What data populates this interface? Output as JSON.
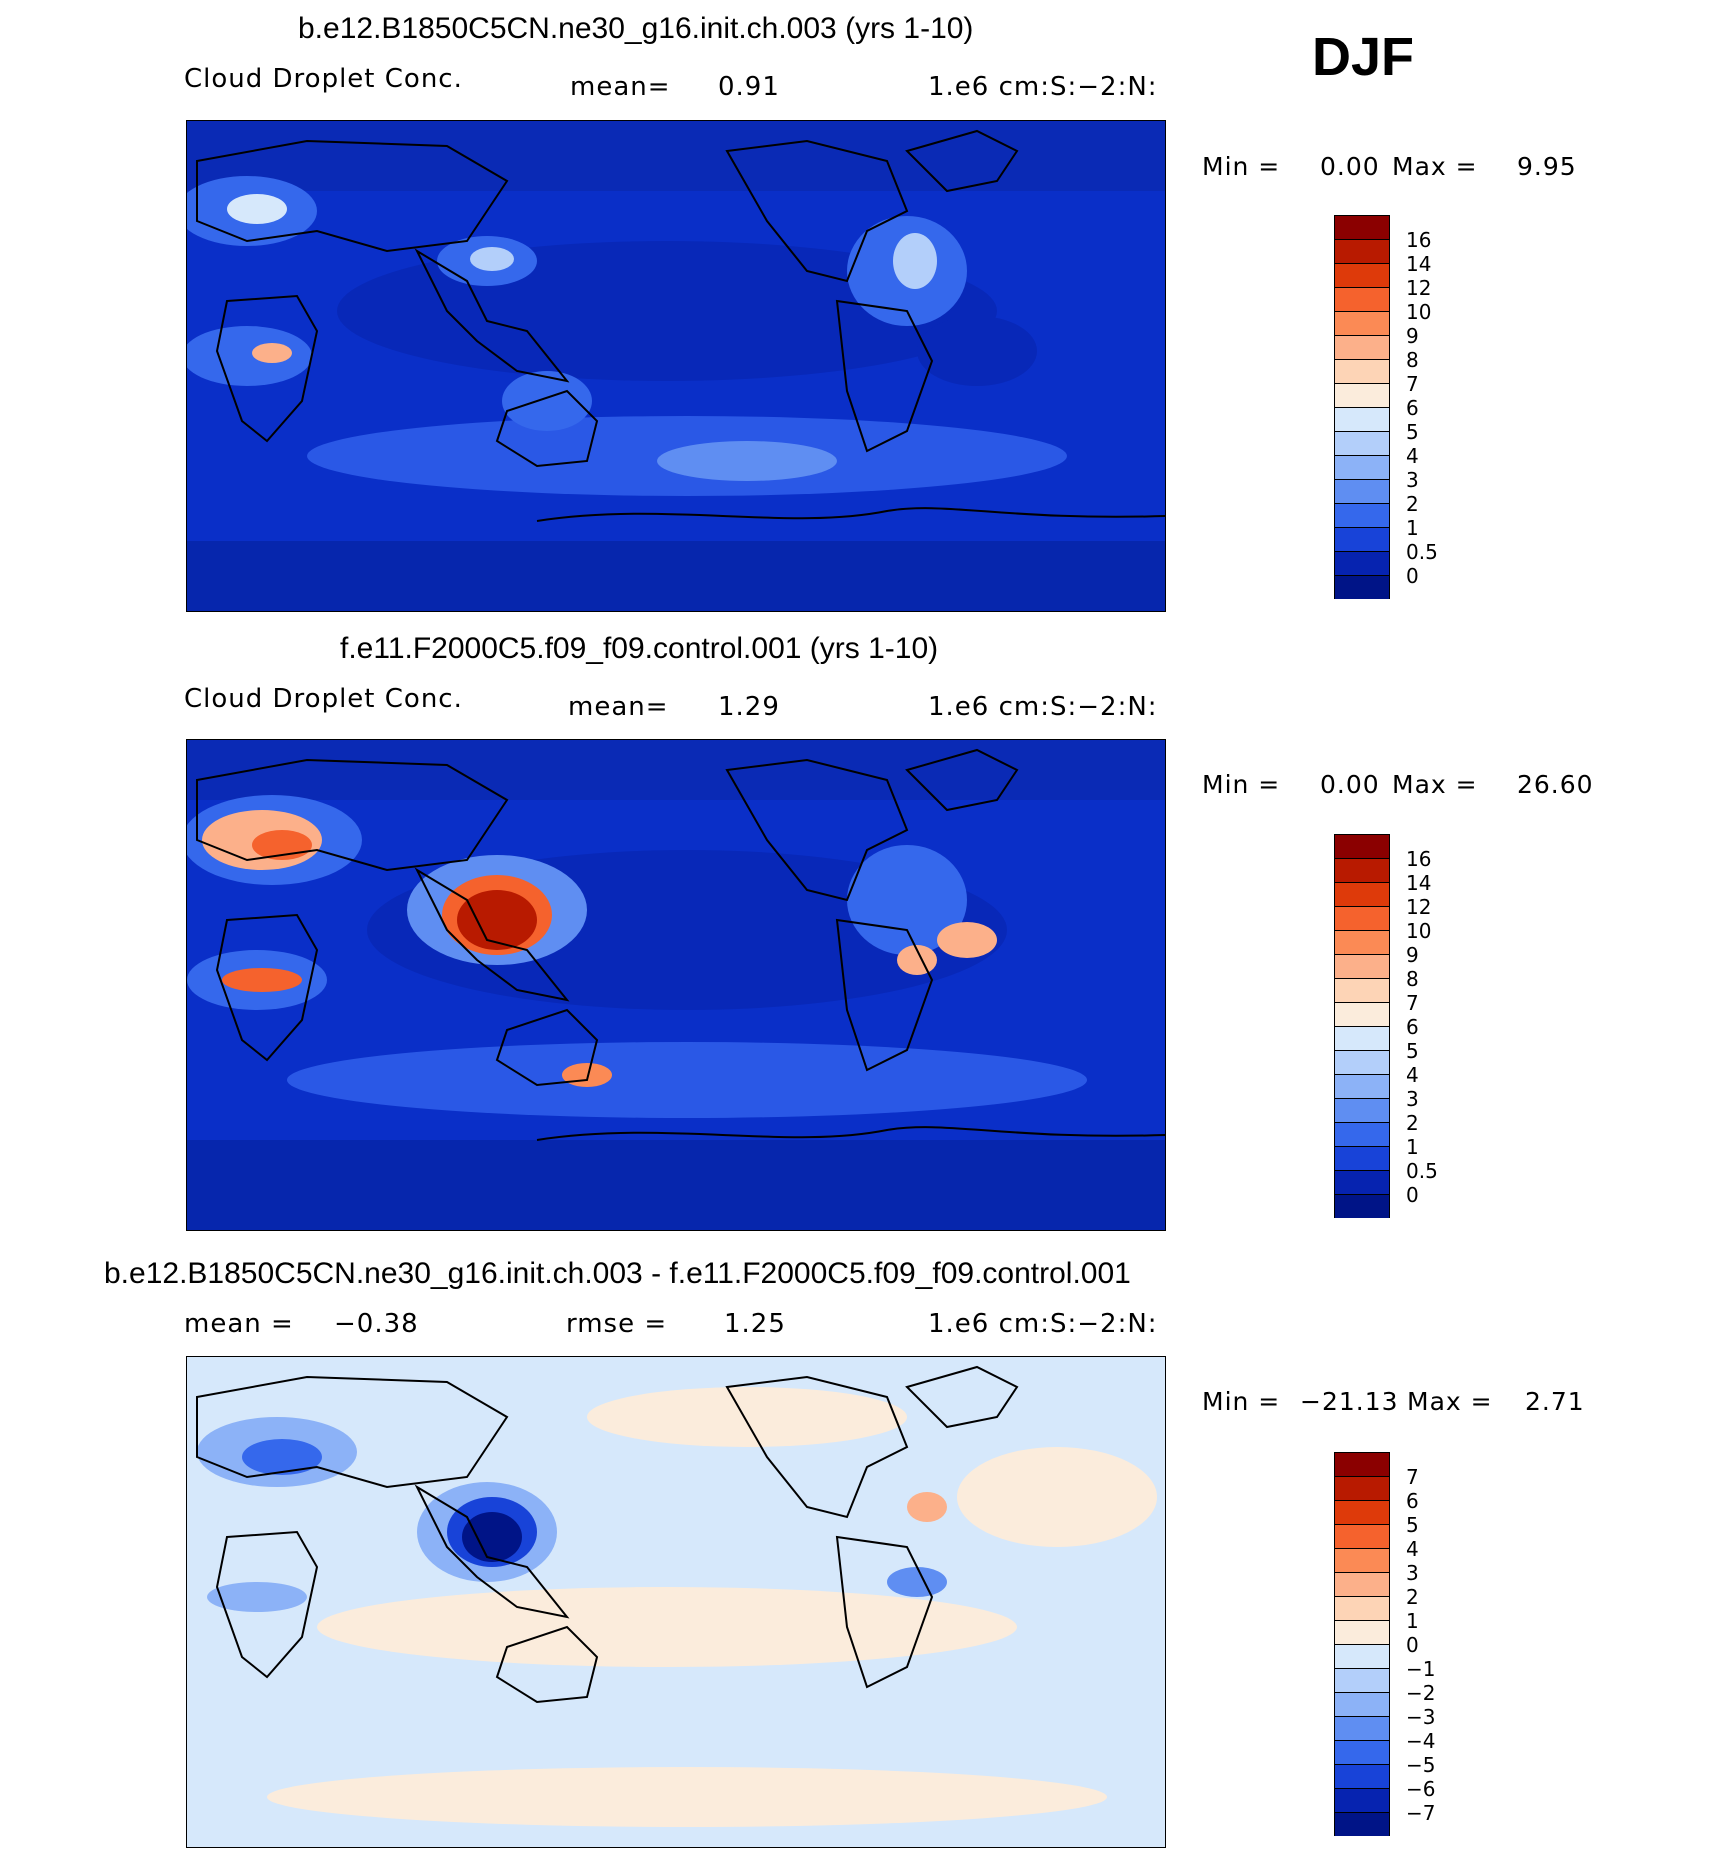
{
  "season": "DJF",
  "panels": [
    {
      "title": "b.e12.B1850C5CN.ne30_g16.init.ch.003 (yrs 1-10)",
      "left_label": "Cloud Droplet Conc.",
      "stat_label": "mean=",
      "stat_value": "0.91",
      "units": "1.e6 cm:S:−2:N:",
      "min_label": "Min =",
      "min_value": "0.00",
      "max_label": "Max =",
      "max_value": "9.95",
      "colorbar": {
        "levels": [
          "16",
          "14",
          "12",
          "10",
          "9",
          "8",
          "7",
          "6",
          "5",
          "4",
          "3",
          "2",
          "1",
          "0.5",
          "0"
        ],
        "colors": [
          "#8b0000",
          "#b81a00",
          "#de3a0a",
          "#f5622d",
          "#fb8a55",
          "#fcb08a",
          "#fdd4b6",
          "#fbecdc",
          "#d6e8fb",
          "#b3cffa",
          "#8cb2f7",
          "#5f8ef2",
          "#3568ec",
          "#1843d8",
          "#0623b0",
          "#001487"
        ]
      }
    },
    {
      "title": "f.e11.F2000C5.f09_f09.control.001 (yrs 1-10)",
      "left_label": "Cloud Droplet Conc.",
      "stat_label": "mean=",
      "stat_value": "1.29",
      "units": "1.e6 cm:S:−2:N:",
      "min_label": "Min =",
      "min_value": "0.00",
      "max_label": "Max =",
      "max_value": "26.60",
      "colorbar": {
        "levels": [
          "16",
          "14",
          "12",
          "10",
          "9",
          "8",
          "7",
          "6",
          "5",
          "4",
          "3",
          "2",
          "1",
          "0.5",
          "0"
        ],
        "colors": [
          "#8b0000",
          "#b81a00",
          "#de3a0a",
          "#f5622d",
          "#fb8a55",
          "#fcb08a",
          "#fdd4b6",
          "#fbecdc",
          "#d6e8fb",
          "#b3cffa",
          "#8cb2f7",
          "#5f8ef2",
          "#3568ec",
          "#1843d8",
          "#0623b0",
          "#001487"
        ]
      }
    },
    {
      "title": "b.e12.B1850C5CN.ne30_g16.init.ch.003 - f.e11.F2000C5.f09_f09.control.001",
      "left_label": "mean =",
      "left_value": "−0.38",
      "stat_label": "rmse =",
      "stat_value": "1.25",
      "units": "1.e6 cm:S:−2:N:",
      "min_label": "Min =",
      "min_value": "−21.13",
      "max_label": "Max =",
      "max_value": "2.71",
      "colorbar": {
        "levels": [
          "7",
          "6",
          "5",
          "4",
          "3",
          "2",
          "1",
          "0",
          "−1",
          "−2",
          "−3",
          "−4",
          "−5",
          "−6",
          "−7"
        ],
        "colors": [
          "#8b0000",
          "#b81a00",
          "#de3a0a",
          "#f5622d",
          "#fb8a55",
          "#fcb08a",
          "#fdd4b6",
          "#fbecdc",
          "#d6e8fb",
          "#b3cffa",
          "#8cb2f7",
          "#5f8ef2",
          "#3568ec",
          "#1843d8",
          "#0623b0",
          "#001487"
        ]
      }
    }
  ]
}
